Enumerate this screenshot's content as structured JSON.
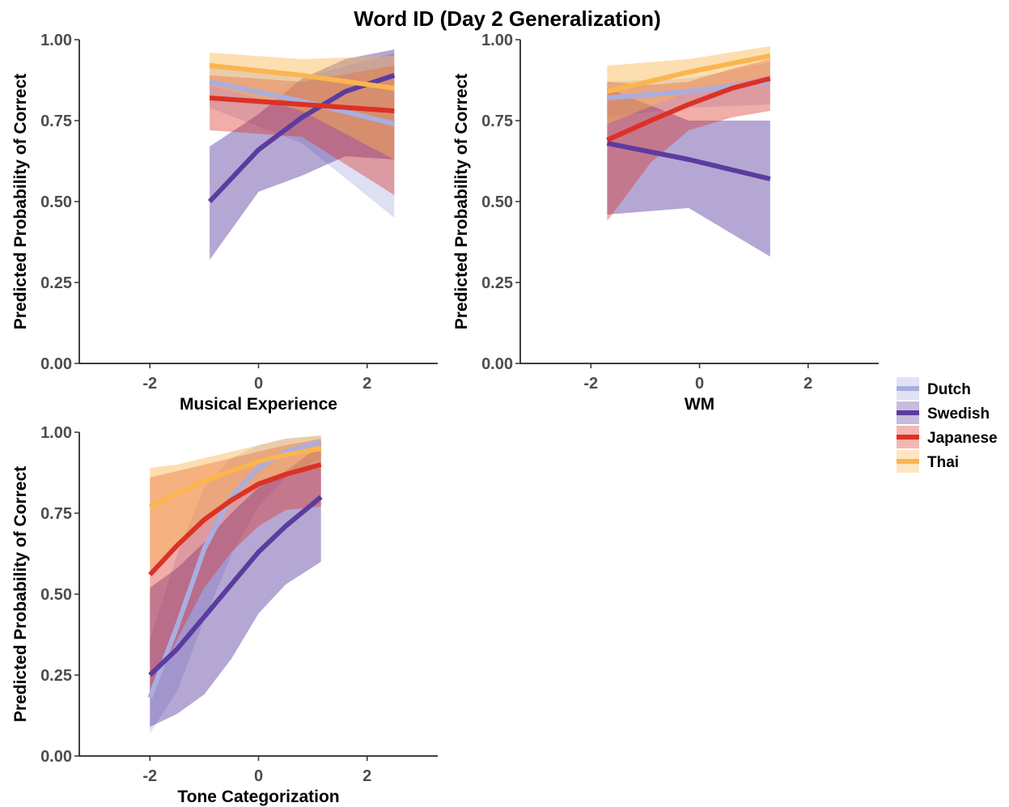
{
  "figure_title": "Word ID (Day 2 Generalization)",
  "legend": {
    "entries": [
      {
        "label": "Dutch",
        "color": "#a9aee0"
      },
      {
        "label": "Swedish",
        "color": "#5b3c9e"
      },
      {
        "label": "Japanese",
        "color": "#dc3125"
      },
      {
        "label": "Thai",
        "color": "#fbb550"
      }
    ]
  },
  "chart_data": [
    {
      "type": "line",
      "title": "",
      "xlabel": "Musical Experience",
      "ylabel": "Predicted Probability of Correct",
      "xlim": [
        -3.3,
        3.3
      ],
      "ylim": [
        0,
        1
      ],
      "xticks": [
        -2,
        0,
        2
      ],
      "yticks": [
        "0.00",
        "0.25",
        "0.50",
        "0.75",
        "1.00"
      ],
      "grid": false,
      "series": [
        {
          "name": "Dutch",
          "x": [
            -0.9,
            0.8,
            2.5
          ],
          "y": [
            0.87,
            0.81,
            0.74
          ],
          "lower": [
            0.79,
            0.68,
            0.45
          ],
          "upper": [
            0.93,
            0.88,
            0.96
          ]
        },
        {
          "name": "Swedish",
          "x": [
            -0.9,
            0.0,
            0.8,
            1.6,
            2.5
          ],
          "y": [
            0.5,
            0.66,
            0.76,
            0.84,
            0.89
          ],
          "lower": [
            0.32,
            0.53,
            0.58,
            0.64,
            0.63
          ],
          "upper": [
            0.67,
            0.77,
            0.88,
            0.94,
            0.97
          ]
        },
        {
          "name": "Japanese",
          "x": [
            -0.9,
            0.8,
            2.5
          ],
          "y": [
            0.82,
            0.8,
            0.78
          ],
          "lower": [
            0.72,
            0.7,
            0.52
          ],
          "upper": [
            0.89,
            0.87,
            0.92
          ]
        },
        {
          "name": "Thai",
          "x": [
            -0.9,
            0.8,
            2.5
          ],
          "y": [
            0.92,
            0.89,
            0.85
          ],
          "lower": [
            0.86,
            0.78,
            0.63
          ],
          "upper": [
            0.96,
            0.94,
            0.95
          ]
        }
      ]
    },
    {
      "type": "line",
      "title": "",
      "xlabel": "WM",
      "ylabel": "Predicted Probability of Correct",
      "xlim": [
        -3.3,
        3.3
      ],
      "ylim": [
        0,
        1
      ],
      "xticks": [
        -2,
        0,
        2
      ],
      "yticks": [
        "0.00",
        "0.25",
        "0.50",
        "0.75",
        "1.00"
      ],
      "grid": false,
      "series": [
        {
          "name": "Dutch",
          "x": [
            -1.7,
            -0.2,
            1.3
          ],
          "y": [
            0.82,
            0.84,
            0.87
          ],
          "lower": [
            0.76,
            0.79,
            0.8
          ],
          "upper": [
            0.87,
            0.88,
            0.93
          ]
        },
        {
          "name": "Swedish",
          "x": [
            -1.7,
            -0.2,
            1.3
          ],
          "y": [
            0.68,
            0.63,
            0.57
          ],
          "lower": [
            0.46,
            0.48,
            0.33
          ],
          "upper": [
            0.85,
            0.75,
            0.75
          ]
        },
        {
          "name": "Japanese",
          "x": [
            -1.7,
            -0.9,
            -0.2,
            0.6,
            1.3
          ],
          "y": [
            0.69,
            0.75,
            0.8,
            0.85,
            0.88
          ],
          "lower": [
            0.44,
            0.62,
            0.72,
            0.76,
            0.78
          ],
          "upper": [
            0.87,
            0.86,
            0.87,
            0.91,
            0.94
          ]
        },
        {
          "name": "Thai",
          "x": [
            -1.7,
            -0.2,
            1.3
          ],
          "y": [
            0.84,
            0.9,
            0.95
          ],
          "lower": [
            0.74,
            0.84,
            0.89
          ],
          "upper": [
            0.92,
            0.94,
            0.98
          ]
        }
      ]
    },
    {
      "type": "line",
      "title": "",
      "xlabel": "Tone Categorization",
      "ylabel": "Predicted Probability of Correct",
      "xlim": [
        -3.3,
        3.3
      ],
      "ylim": [
        0,
        1
      ],
      "xticks": [
        -2,
        0,
        2
      ],
      "yticks": [
        "0.00",
        "0.25",
        "0.50",
        "0.75",
        "1.00"
      ],
      "grid": false,
      "series": [
        {
          "name": "Dutch",
          "x": [
            -2.0,
            -1.5,
            -1.0,
            -0.5,
            0.0,
            0.5,
            1.15
          ],
          "y": [
            0.18,
            0.4,
            0.64,
            0.8,
            0.89,
            0.94,
            0.97
          ],
          "lower": [
            0.07,
            0.2,
            0.42,
            0.62,
            0.77,
            0.86,
            0.92
          ],
          "upper": [
            0.36,
            0.62,
            0.83,
            0.92,
            0.96,
            0.98,
            0.99
          ]
        },
        {
          "name": "Swedish",
          "x": [
            -2.0,
            -1.5,
            -1.0,
            -0.5,
            0.0,
            0.5,
            1.15
          ],
          "y": [
            0.25,
            0.33,
            0.43,
            0.53,
            0.63,
            0.71,
            0.8
          ],
          "lower": [
            0.09,
            0.13,
            0.19,
            0.3,
            0.44,
            0.53,
            0.6
          ],
          "upper": [
            0.52,
            0.58,
            0.66,
            0.75,
            0.83,
            0.88,
            0.96
          ]
        },
        {
          "name": "Japanese",
          "x": [
            -2.0,
            -1.5,
            -1.0,
            -0.5,
            0.0,
            0.5,
            1.15
          ],
          "y": [
            0.56,
            0.65,
            0.73,
            0.79,
            0.84,
            0.87,
            0.9
          ],
          "lower": [
            0.19,
            0.36,
            0.52,
            0.63,
            0.71,
            0.76,
            0.77
          ],
          "upper": [
            0.86,
            0.88,
            0.9,
            0.92,
            0.94,
            0.96,
            0.98
          ]
        },
        {
          "name": "Thai",
          "x": [
            -2.0,
            -1.5,
            -1.0,
            -0.5,
            0.0,
            0.5,
            1.15
          ],
          "y": [
            0.77,
            0.81,
            0.85,
            0.88,
            0.91,
            0.93,
            0.95
          ],
          "lower": [
            0.58,
            0.65,
            0.72,
            0.78,
            0.83,
            0.87,
            0.89
          ],
          "upper": [
            0.89,
            0.9,
            0.92,
            0.94,
            0.96,
            0.98,
            0.99
          ]
        }
      ]
    }
  ]
}
